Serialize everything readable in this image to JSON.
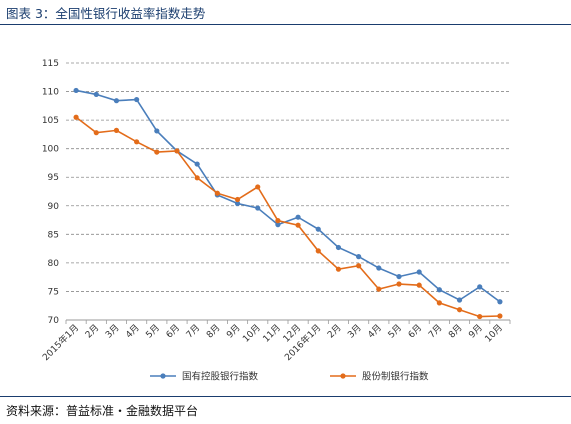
{
  "figure": {
    "title": "图表 3：全国性银行收益率指数走势",
    "source": "资料来源：普益标准・金融数据平台"
  },
  "chart_data": {
    "type": "line",
    "categories": [
      "2015年1月",
      "2月",
      "3月",
      "4月",
      "5月",
      "6月",
      "7月",
      "8月",
      "9月",
      "10月",
      "11月",
      "12月",
      "2016年1月",
      "2月",
      "3月",
      "4月",
      "5月",
      "6月",
      "7月",
      "8月",
      "9月",
      "10月"
    ],
    "ylim": [
      70,
      115
    ],
    "yticks": [
      70,
      75,
      80,
      85,
      90,
      95,
      100,
      105,
      110,
      115
    ],
    "grid": "horizontal-dashed",
    "legend_position": "bottom",
    "series": [
      {
        "name": "国有控股银行指数",
        "color": "#4a7ebb",
        "values": [
          110.2,
          109.5,
          108.4,
          108.6,
          103.1,
          99.6,
          97.3,
          91.9,
          90.4,
          89.6,
          86.7,
          88.0,
          85.9,
          82.7,
          81.1,
          79.1,
          77.6,
          78.4,
          75.3,
          73.5,
          75.8,
          73.2
        ]
      },
      {
        "name": "股份制银行指数",
        "color": "#e36c1a",
        "values": [
          105.5,
          102.8,
          103.2,
          101.2,
          99.4,
          99.6,
          94.9,
          92.2,
          91.1,
          93.3,
          87.4,
          86.6,
          82.1,
          78.9,
          79.5,
          75.4,
          76.3,
          76.1,
          73.0,
          71.8,
          70.6,
          70.7
        ]
      }
    ]
  }
}
